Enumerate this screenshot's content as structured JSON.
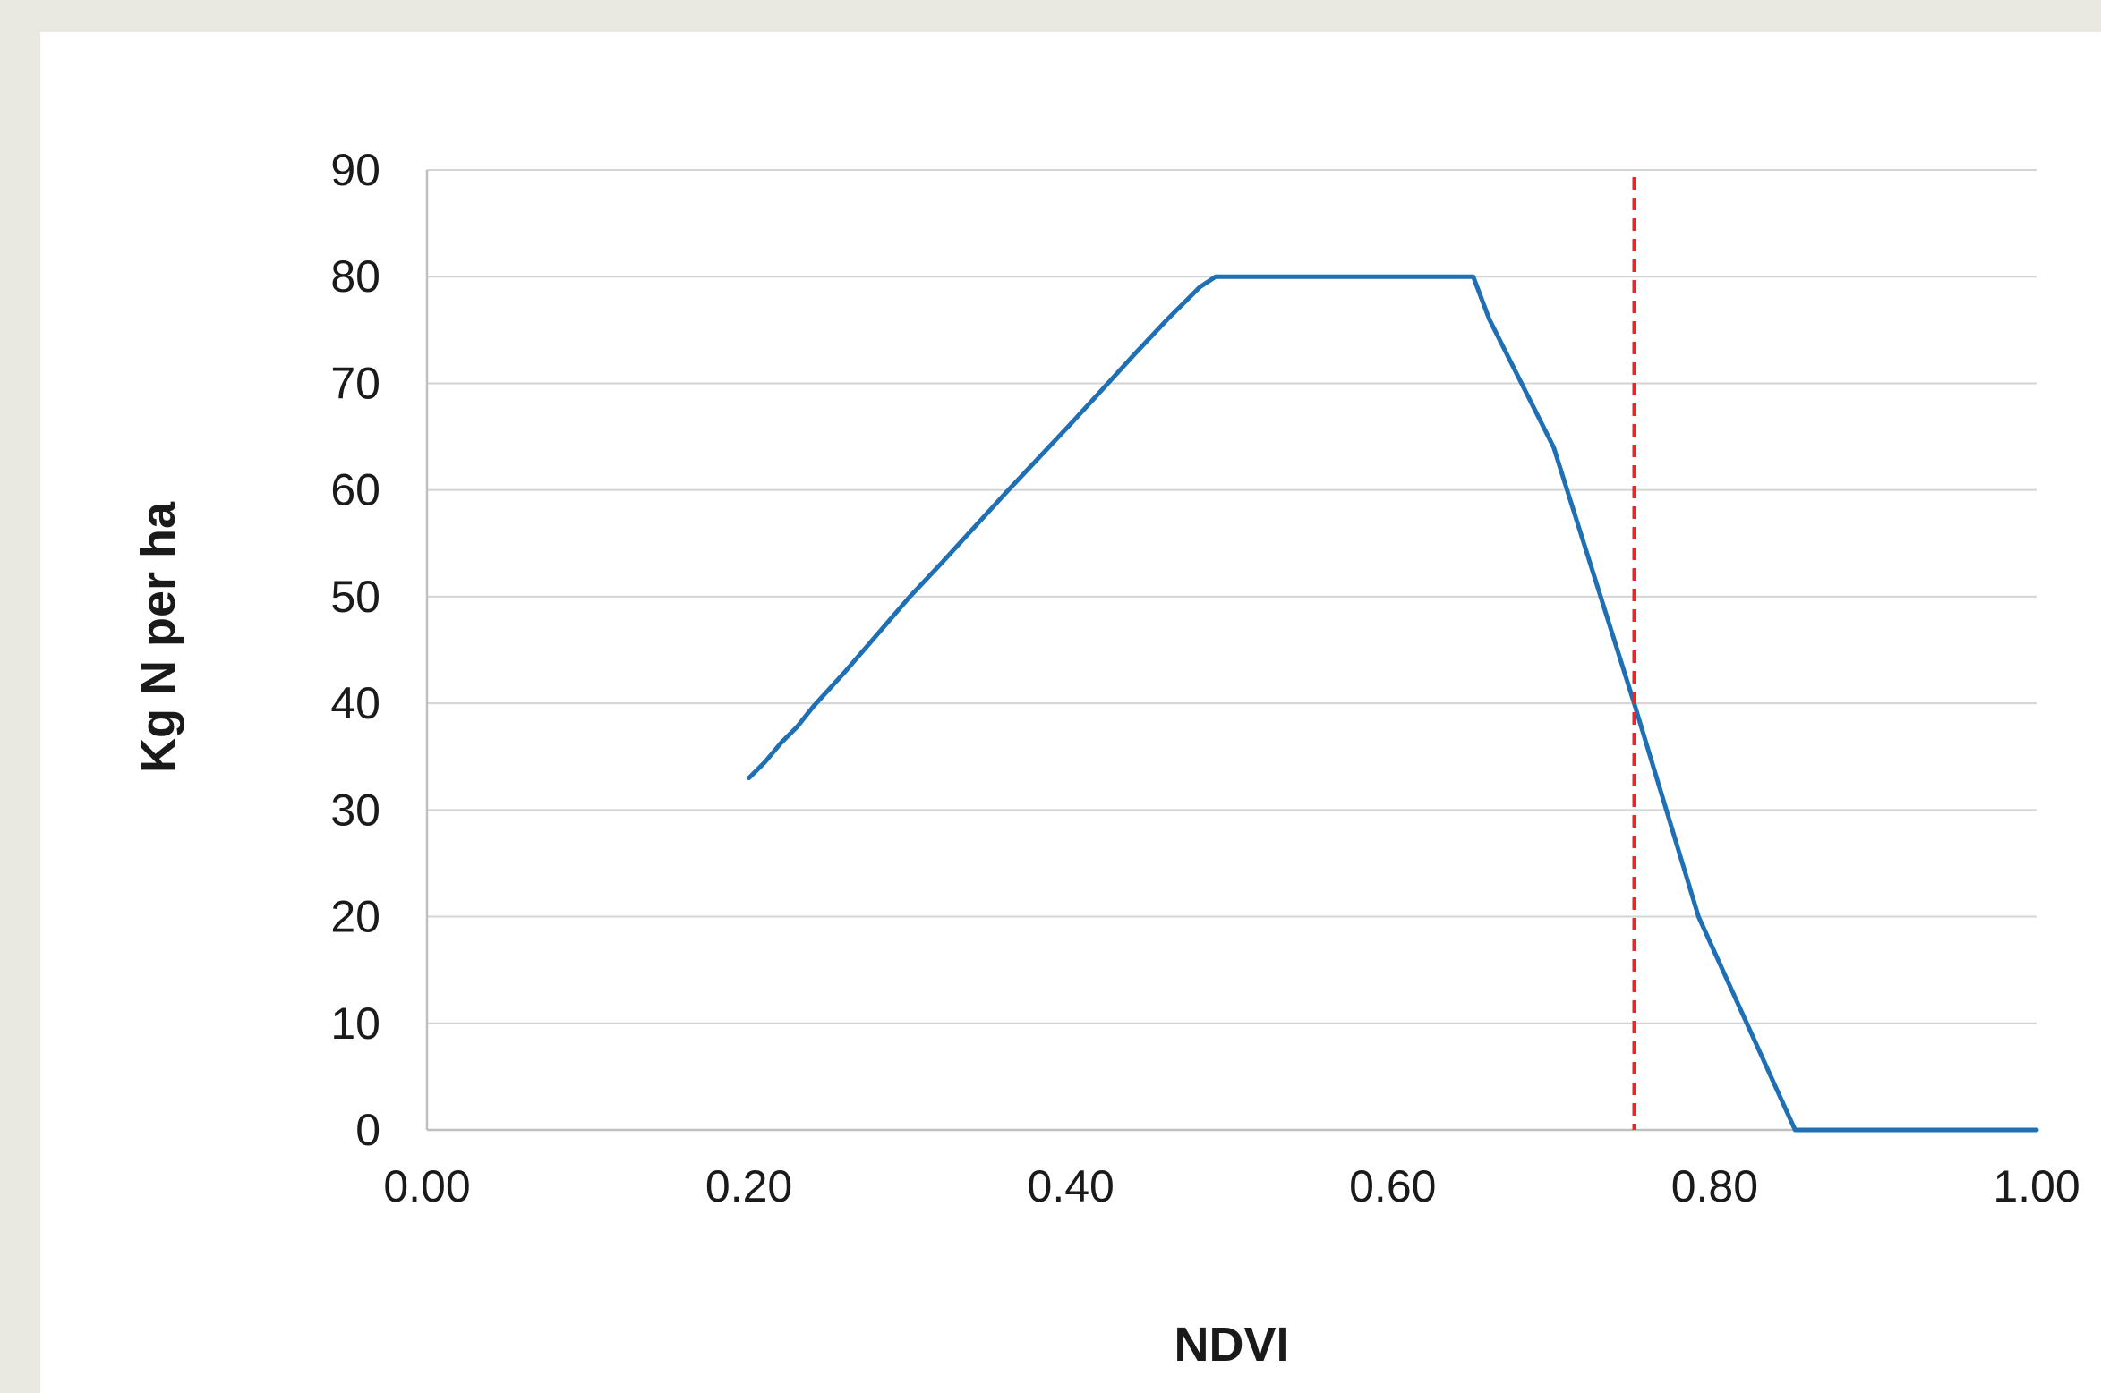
{
  "colors": {
    "page_background": "#e9e8e1",
    "plot_background": "#ffffff",
    "gridline": "#d4d4d4",
    "axis": "#bfbfbf",
    "series": "#1f6fb5",
    "marker": "#e8262c"
  },
  "chart_data": {
    "type": "line",
    "title": "",
    "xlabel": "NDVI",
    "ylabel": "Kg N per ha",
    "xlim": [
      0,
      1
    ],
    "ylim": [
      0,
      90
    ],
    "x_ticks": [
      "0.00",
      "0.20",
      "0.40",
      "0.60",
      "0.80",
      "1.00"
    ],
    "y_ticks": [
      "0",
      "10",
      "20",
      "30",
      "40",
      "50",
      "60",
      "70",
      "80",
      "90"
    ],
    "grid": "horizontal",
    "legend": "none",
    "series": [
      {
        "color": "#1f6fb5",
        "points": [
          [
            0.2,
            33
          ],
          [
            0.21,
            34.5
          ],
          [
            0.22,
            36.3
          ],
          [
            0.23,
            37.8
          ],
          [
            0.24,
            39.7
          ],
          [
            0.26,
            43
          ],
          [
            0.28,
            46.5
          ],
          [
            0.3,
            50
          ],
          [
            0.32,
            53.2
          ],
          [
            0.34,
            56.5
          ],
          [
            0.36,
            59.8
          ],
          [
            0.38,
            63
          ],
          [
            0.4,
            66.2
          ],
          [
            0.42,
            69.5
          ],
          [
            0.44,
            72.8
          ],
          [
            0.46,
            76
          ],
          [
            0.48,
            79
          ],
          [
            0.49,
            80
          ],
          [
            0.65,
            80
          ],
          [
            0.66,
            76
          ],
          [
            0.7,
            64
          ],
          [
            0.75,
            40
          ],
          [
            0.79,
            20
          ],
          [
            0.85,
            0
          ],
          [
            1.0,
            0
          ]
        ]
      }
    ],
    "reference_lines": [
      {
        "axis": "x",
        "value": 0.75,
        "style": "dashed",
        "color": "#e8262c"
      }
    ]
  }
}
